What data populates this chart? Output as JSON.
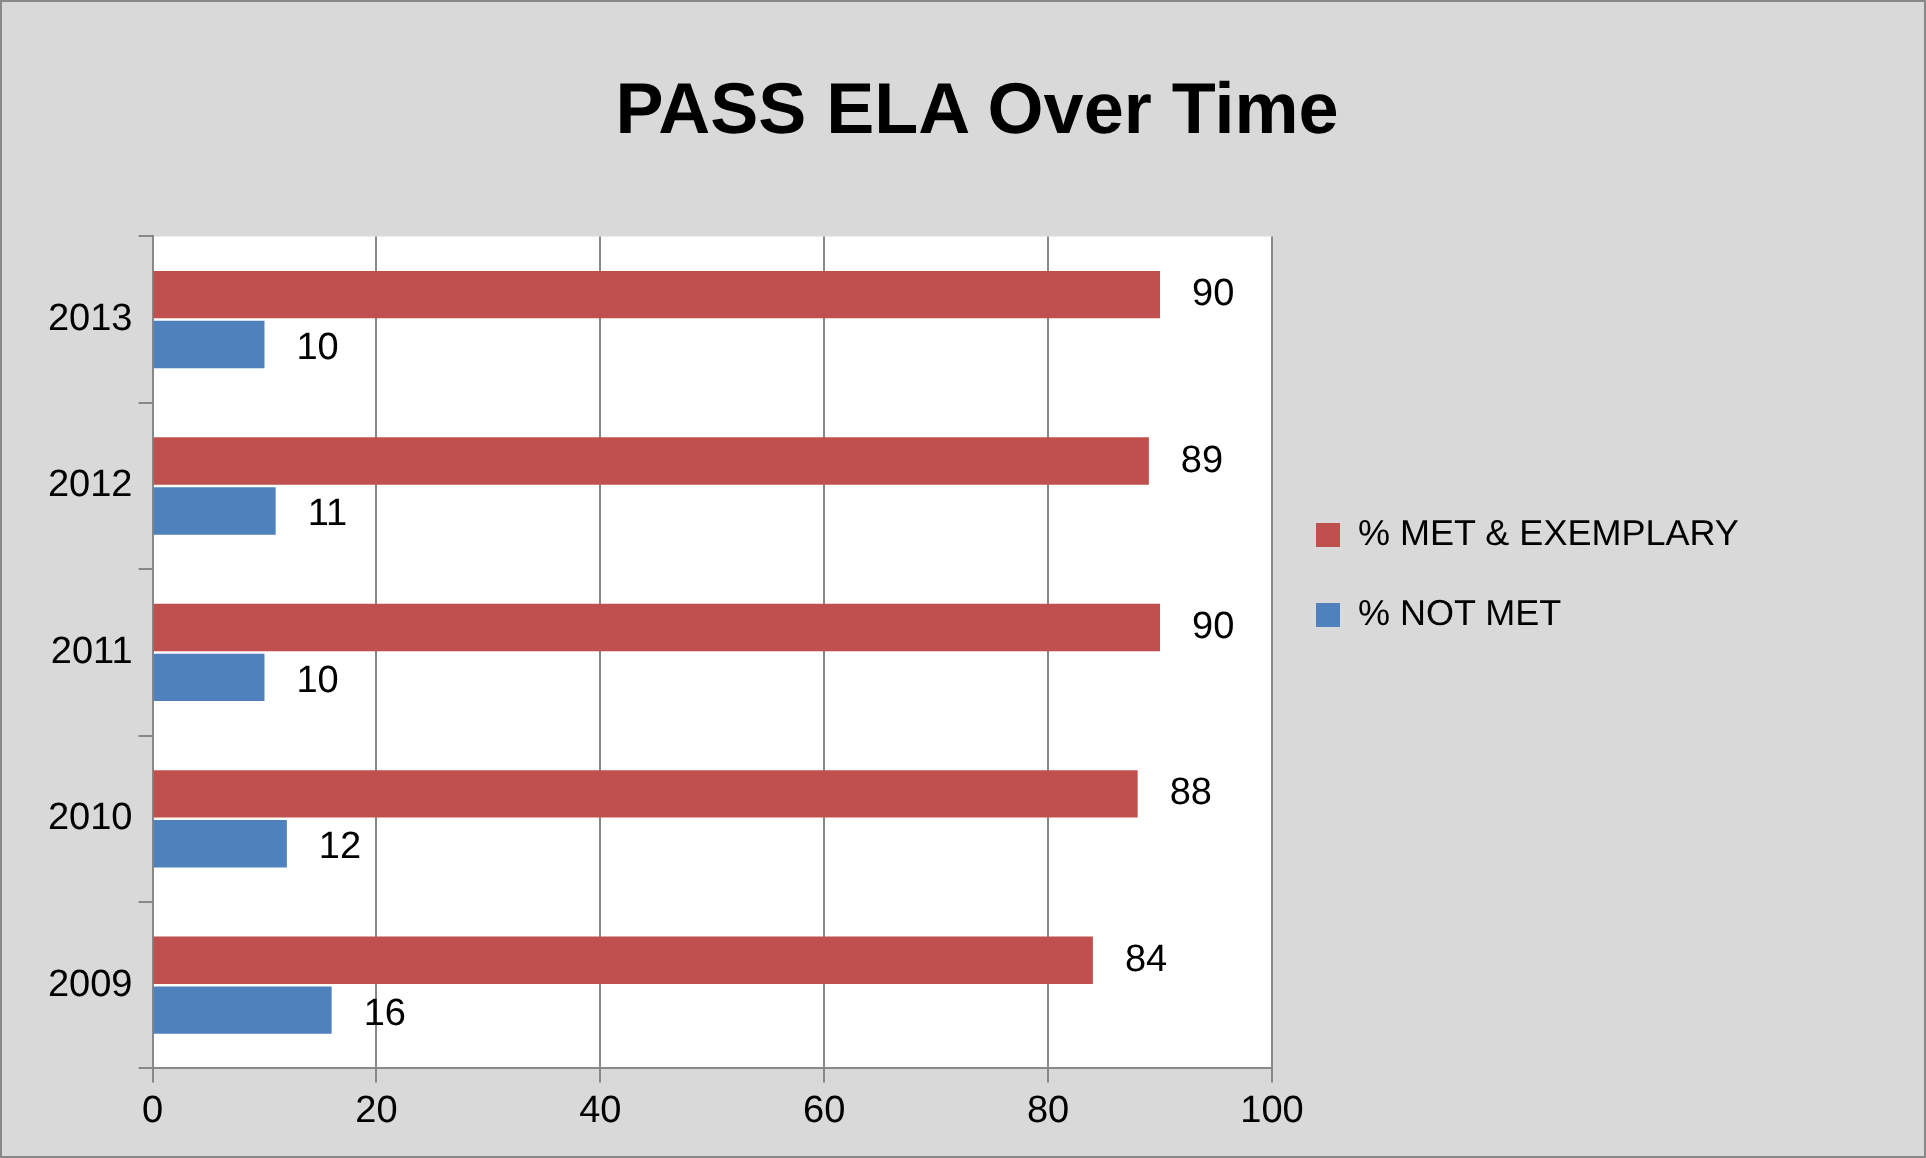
{
  "chart_data": {
    "type": "bar",
    "orientation": "horizontal",
    "title": "PASS ELA Over Time",
    "categories": [
      "2013",
      "2012",
      "2011",
      "2010",
      "2009"
    ],
    "series": [
      {
        "name": "% MET & EXEMPLARY",
        "color": "#c0504d",
        "values": [
          90,
          89,
          90,
          88,
          84
        ]
      },
      {
        "name": "% NOT MET",
        "color": "#4f81bd",
        "values": [
          10,
          11,
          10,
          12,
          16
        ]
      }
    ],
    "xlim": [
      0,
      100
    ],
    "xticks": [
      0,
      20,
      40,
      60,
      80,
      100
    ],
    "grid": "x",
    "legend": "right",
    "data_labels": true
  }
}
